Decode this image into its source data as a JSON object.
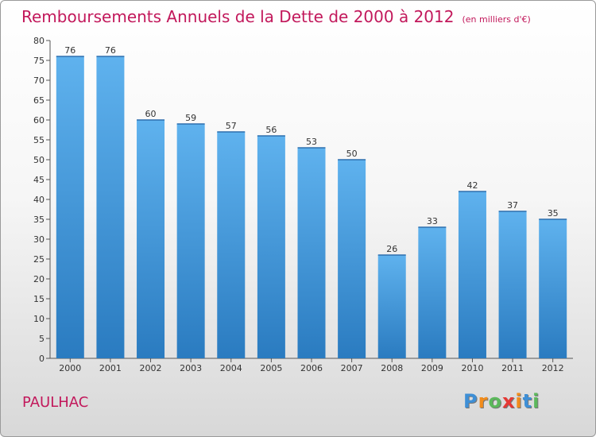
{
  "chart_data": {
    "type": "bar",
    "title": "Remboursements Annuels de la Dette de 2000 à 2012",
    "subtitle": "(en milliers d'€)",
    "categories": [
      "2000",
      "2001",
      "2002",
      "2003",
      "2004",
      "2005",
      "2006",
      "2007",
      "2008",
      "2009",
      "2010",
      "2011",
      "2012"
    ],
    "values": [
      76,
      76,
      60,
      59,
      57,
      56,
      53,
      50,
      26,
      33,
      42,
      37,
      35
    ],
    "ylim": [
      0,
      80
    ],
    "yticks": [
      0,
      5,
      10,
      15,
      20,
      25,
      30,
      35,
      40,
      45,
      50,
      55,
      60,
      65,
      70,
      75,
      80
    ],
    "xlabel": "",
    "ylabel": "",
    "grid": false,
    "bar_color": "#4a9fe0"
  },
  "footer": {
    "place": "PAULHAC",
    "logo_letters": [
      "P",
      "r",
      "o",
      "x",
      "i",
      "t",
      "i"
    ],
    "logo_colors": [
      "#3e8fd6",
      "#f28c1b",
      "#5cb85c",
      "#e53935",
      "#f28c1b",
      "#3e8fd6",
      "#5cb85c"
    ]
  }
}
